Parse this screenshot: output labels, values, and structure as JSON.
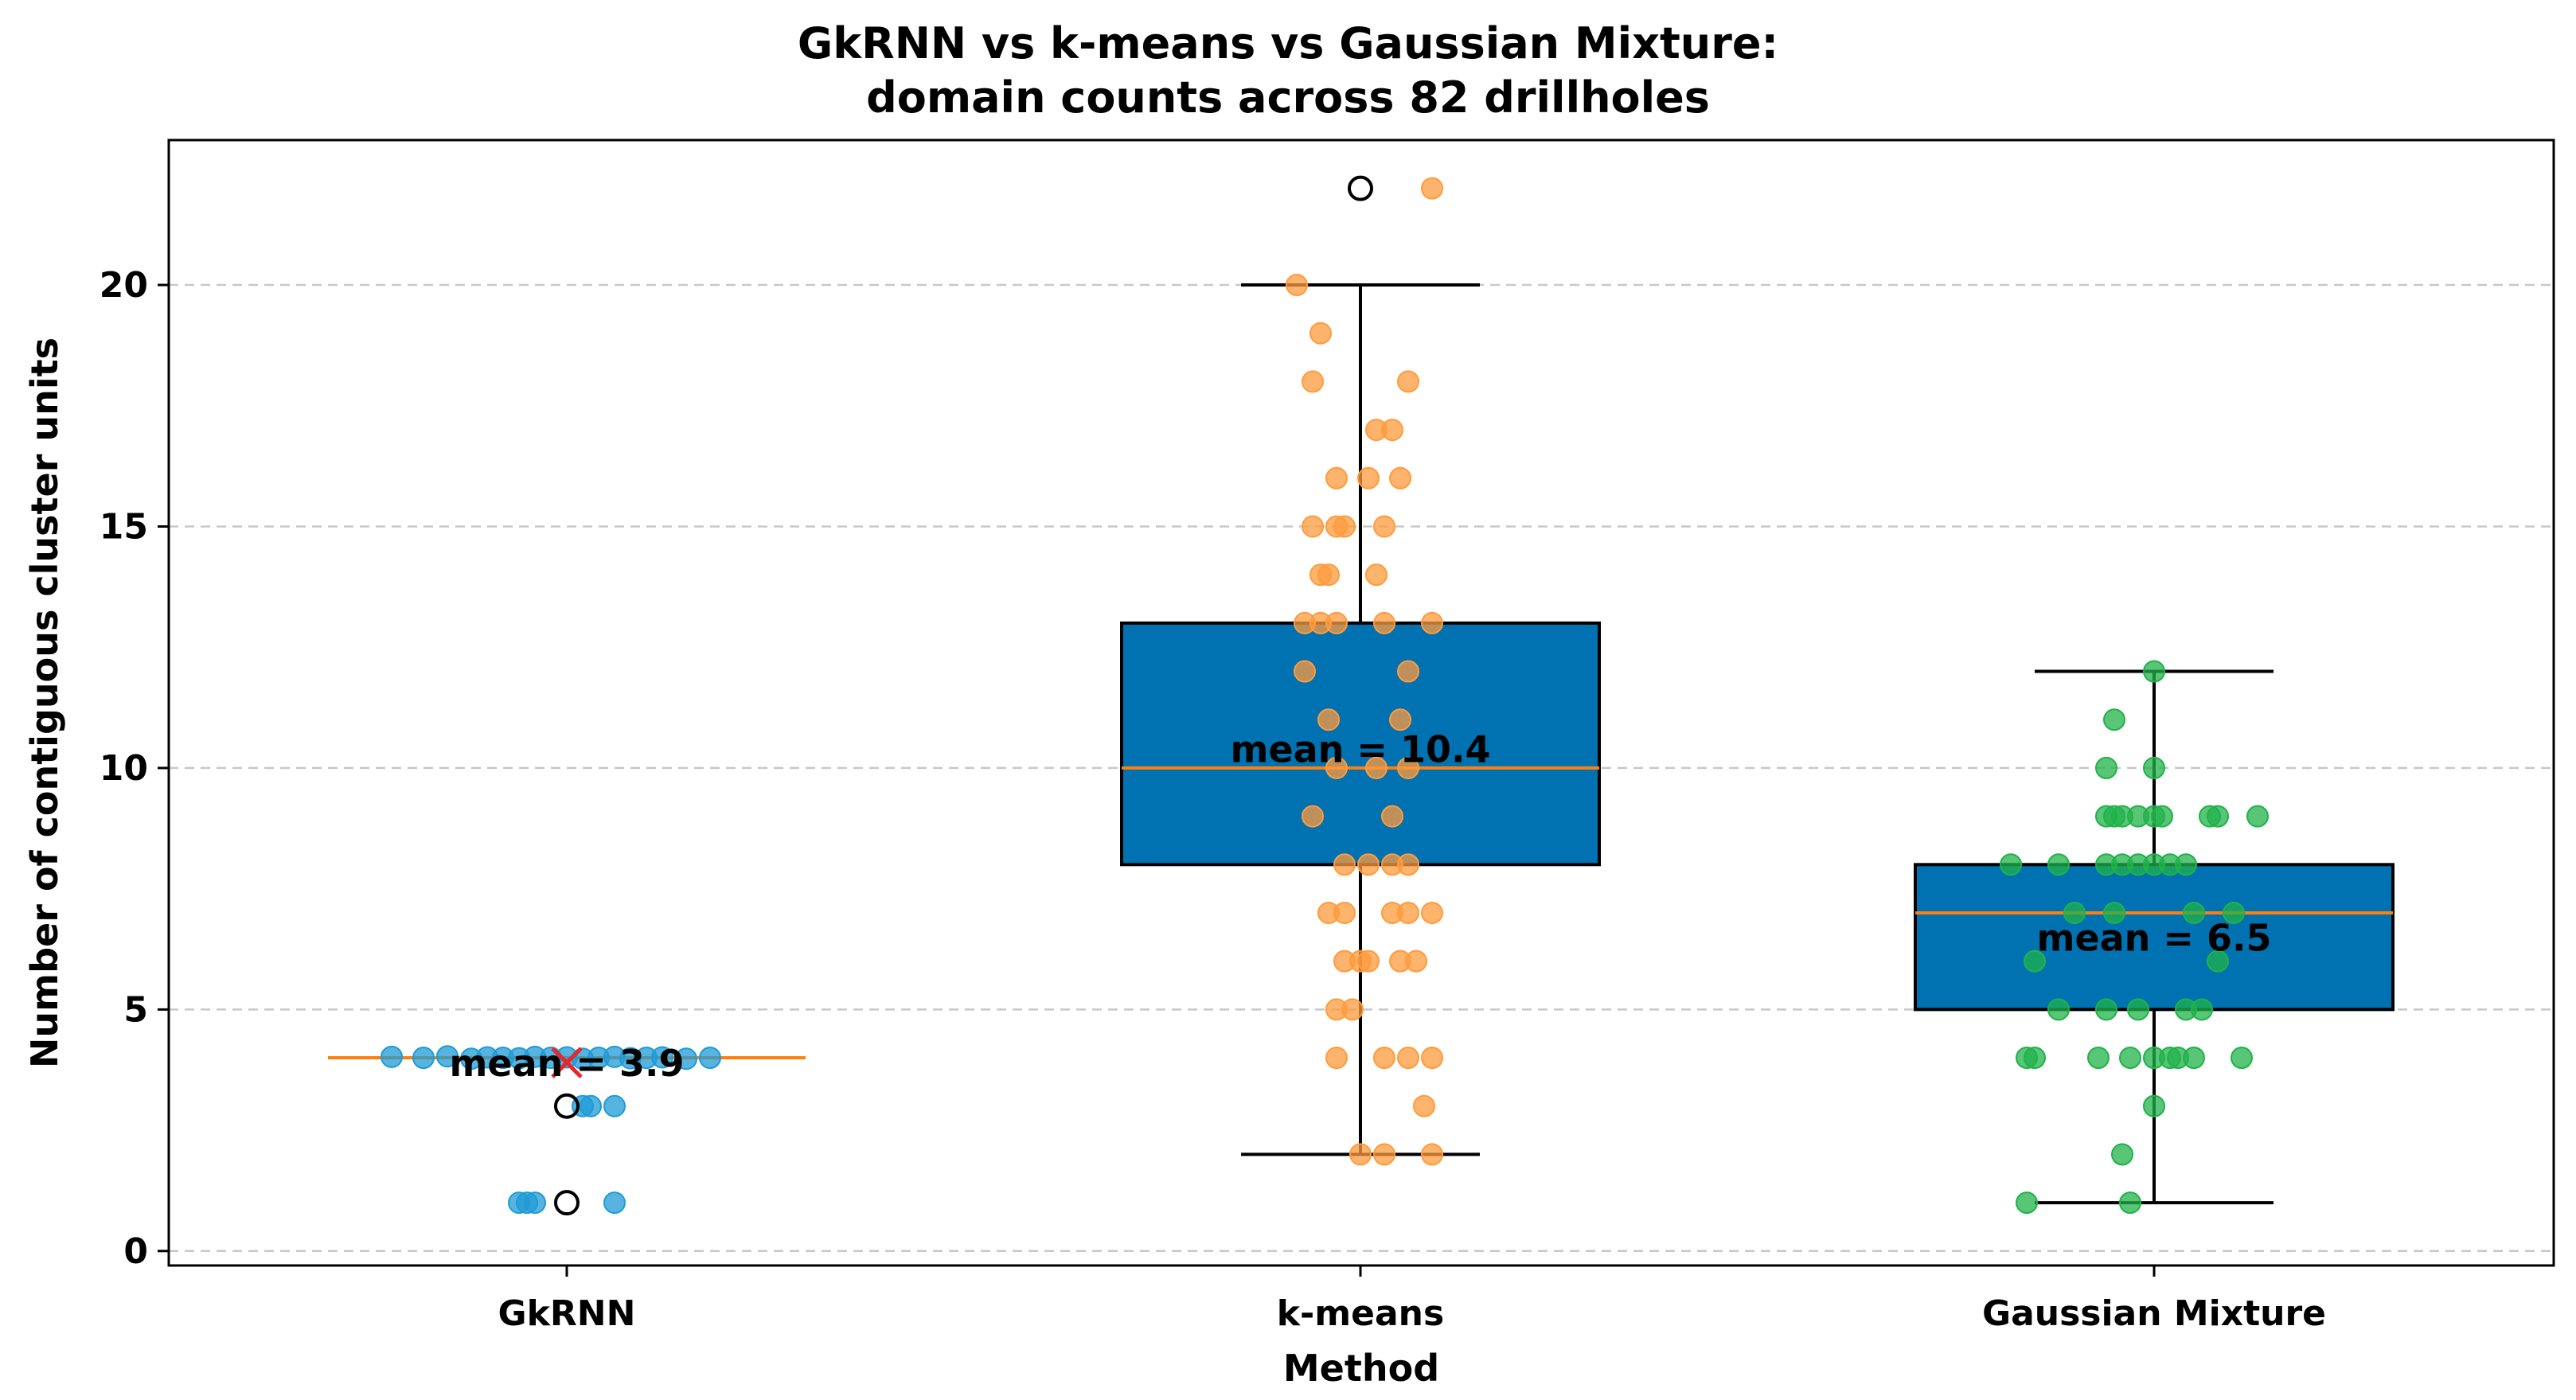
{
  "chart_data": {
    "type": "box",
    "title_lines": [
      "GkRNN vs k-means vs Gaussian Mixture:",
      "domain counts across 82 drillholes"
    ],
    "xlabel": "Method",
    "ylabel": "Number of contiguous cluster units",
    "categories": [
      "GkRNN",
      "k-means",
      "Gaussian Mixture"
    ],
    "ylim": [
      -0.3,
      23.0
    ],
    "yticks": [
      0,
      5,
      10,
      15,
      20
    ],
    "grid": "y-dashed",
    "series": [
      {
        "category": "GkRNN",
        "color": "#1f9bd6",
        "box_color": "#0072b2",
        "min": 4,
        "q1": 4,
        "median": 4,
        "q3": 4,
        "max": 4,
        "mean": 3.9,
        "mean_label": "mean = 3.9",
        "mean_marker": "x",
        "mean_marker_color": "#e8262a",
        "outliers": [
          3,
          1
        ],
        "points": [
          [
            -0.22,
            4.02
          ],
          [
            -0.18,
            4.0
          ],
          [
            -0.15,
            4.03
          ],
          [
            -0.12,
            3.98
          ],
          [
            -0.1,
            4.01
          ],
          [
            -0.08,
            4.0
          ],
          [
            -0.06,
            3.99
          ],
          [
            -0.04,
            4.02
          ],
          [
            -0.02,
            4.0
          ],
          [
            0.0,
            4.01
          ],
          [
            0.02,
            3.98
          ],
          [
            0.04,
            4.0
          ],
          [
            0.06,
            4.02
          ],
          [
            0.08,
            3.99
          ],
          [
            0.1,
            4.0
          ],
          [
            0.12,
            4.01
          ],
          [
            0.15,
            3.98
          ],
          [
            0.18,
            4.0
          ],
          [
            0.03,
            3.0
          ],
          [
            0.02,
            3.0
          ],
          [
            0.06,
            3.0
          ],
          [
            -0.06,
            1.0
          ],
          [
            -0.05,
            1.0
          ],
          [
            -0.04,
            1.0
          ],
          [
            0.06,
            1.0
          ]
        ]
      },
      {
        "category": "k-means",
        "color": "#ff9b3c",
        "box_color": "#0072b2",
        "min": 2,
        "q1": 8,
        "median": 10,
        "q3": 13,
        "max": 20,
        "mean": 10.4,
        "mean_label": "mean = 10.4",
        "mean_marker": "none",
        "outliers": [
          22
        ],
        "points": [
          [
            0.09,
            22
          ],
          [
            -0.08,
            20
          ],
          [
            -0.05,
            19
          ],
          [
            -0.06,
            18
          ],
          [
            0.06,
            18
          ],
          [
            0.02,
            17
          ],
          [
            0.04,
            17
          ],
          [
            -0.03,
            16
          ],
          [
            0.05,
            16
          ],
          [
            0.01,
            16
          ],
          [
            -0.06,
            15
          ],
          [
            -0.02,
            15
          ],
          [
            -0.03,
            15
          ],
          [
            0.03,
            15
          ],
          [
            -0.05,
            14
          ],
          [
            -0.04,
            14
          ],
          [
            0.02,
            14
          ],
          [
            -0.07,
            13
          ],
          [
            -0.05,
            13
          ],
          [
            -0.03,
            13
          ],
          [
            0.03,
            13
          ],
          [
            0.09,
            13
          ],
          [
            -0.07,
            12
          ],
          [
            0.06,
            12
          ],
          [
            -0.04,
            11
          ],
          [
            0.05,
            11
          ],
          [
            -0.03,
            10
          ],
          [
            0.02,
            10
          ],
          [
            0.06,
            10
          ],
          [
            -0.06,
            9
          ],
          [
            0.04,
            9
          ],
          [
            0.01,
            8
          ],
          [
            0.04,
            8
          ],
          [
            -0.02,
            8
          ],
          [
            0.06,
            8
          ],
          [
            -0.04,
            7
          ],
          [
            -0.02,
            7
          ],
          [
            0.04,
            7
          ],
          [
            0.06,
            7
          ],
          [
            0.09,
            7
          ],
          [
            -0.02,
            6
          ],
          [
            0.0,
            6
          ],
          [
            0.01,
            6
          ],
          [
            0.05,
            6
          ],
          [
            0.07,
            6
          ],
          [
            -0.03,
            5
          ],
          [
            -0.01,
            5
          ],
          [
            -0.03,
            4
          ],
          [
            0.03,
            4
          ],
          [
            0.06,
            4
          ],
          [
            0.09,
            4
          ],
          [
            0.08,
            3
          ],
          [
            0.0,
            2
          ],
          [
            0.03,
            2
          ],
          [
            0.09,
            2
          ]
        ]
      },
      {
        "category": "Gaussian Mixture",
        "color": "#20b24a",
        "box_color": "#0072b2",
        "min": 1,
        "q1": 5,
        "median": 7,
        "q3": 8,
        "max": 12,
        "mean": 6.5,
        "mean_label": "mean = 6.5",
        "mean_marker": "none",
        "outliers": [],
        "points": [
          [
            0.0,
            12
          ],
          [
            -0.05,
            11
          ],
          [
            -0.06,
            10
          ],
          [
            0.0,
            10
          ],
          [
            -0.06,
            9
          ],
          [
            -0.05,
            9
          ],
          [
            -0.04,
            9
          ],
          [
            -0.02,
            9
          ],
          [
            0.0,
            9
          ],
          [
            0.01,
            9
          ],
          [
            0.07,
            9
          ],
          [
            0.08,
            9
          ],
          [
            0.13,
            9
          ],
          [
            -0.18,
            8
          ],
          [
            -0.12,
            8
          ],
          [
            -0.06,
            8
          ],
          [
            -0.04,
            8
          ],
          [
            -0.02,
            8
          ],
          [
            0.0,
            8
          ],
          [
            0.02,
            8
          ],
          [
            0.04,
            8
          ],
          [
            -0.1,
            7
          ],
          [
            -0.05,
            7
          ],
          [
            0.05,
            7
          ],
          [
            0.1,
            7
          ],
          [
            -0.15,
            6
          ],
          [
            0.08,
            6
          ],
          [
            -0.12,
            5
          ],
          [
            -0.06,
            5
          ],
          [
            -0.02,
            5
          ],
          [
            0.04,
            5
          ],
          [
            0.06,
            5
          ],
          [
            -0.16,
            4
          ],
          [
            -0.15,
            4
          ],
          [
            -0.07,
            4
          ],
          [
            -0.03,
            4
          ],
          [
            0.0,
            4
          ],
          [
            0.02,
            4
          ],
          [
            0.03,
            4
          ],
          [
            0.05,
            4
          ],
          [
            0.11,
            4
          ],
          [
            0.0,
            3
          ],
          [
            -0.04,
            2
          ],
          [
            -0.16,
            1
          ],
          [
            -0.03,
            1
          ]
        ]
      }
    ]
  }
}
